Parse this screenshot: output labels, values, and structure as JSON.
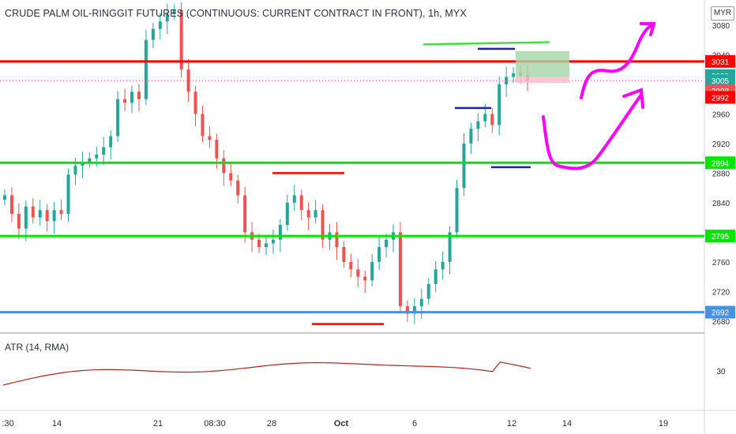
{
  "header": {
    "title": "CRUDE PALM OIL-RINGGIT FUTURES (CONTINUOUS: CURRENT CONTRACT IN FRONT), 1h, MYX",
    "currency": "MYR"
  },
  "atr": {
    "label": "ATR (14, RMA)",
    "tick": "30"
  },
  "price_ticks": [
    "3080",
    "3040",
    "3000",
    "2960",
    "2920",
    "2880",
    "2840",
    "2800",
    "2760",
    "2720",
    "2680"
  ],
  "time_labels": [
    ":30",
    "14",
    "21",
    "08:30",
    "28",
    "Oct",
    "6",
    "12",
    "14",
    "19"
  ],
  "levels": [
    {
      "label": "3031",
      "color": "#ff0000"
    },
    {
      "label": "3030",
      "color": "#26a69a"
    },
    {
      "label": "3005",
      "color": "#26a69a"
    },
    {
      "label": "2998",
      "color": "#ef5350"
    },
    {
      "label": "2992",
      "color": "#ff0000"
    },
    {
      "label": "2894",
      "color": "#00e600"
    },
    {
      "label": "2795",
      "color": "#00e600"
    },
    {
      "label": "2692",
      "color": "#4a90e2"
    }
  ],
  "colors": {
    "up": "#26a69a",
    "down": "#ef5350",
    "magenta": "#ff00ff",
    "atr_line": "#b22222"
  },
  "chart_data": {
    "type": "candlestick",
    "title": "CRUDE PALM OIL-RINGGIT FUTURES (CONTINUOUS: CURRENT CONTRACT IN FRONT), 1h, MYX",
    "ylim": [
      2666,
      3114
    ],
    "horizontal_levels": [
      3031,
      2894,
      2795,
      2692
    ],
    "close_series": [
      2850,
      2825,
      2805,
      2835,
      2820,
      2830,
      2815,
      2830,
      2825,
      2878,
      2890,
      2895,
      2900,
      2905,
      2915,
      2930,
      2980,
      2975,
      2990,
      2980,
      3060,
      3075,
      3085,
      3095,
      3100,
      3020,
      2990,
      2960,
      2930,
      2925,
      2900,
      2880,
      2870,
      2850,
      2800,
      2790,
      2780,
      2785,
      2790,
      2810,
      2840,
      2850,
      2830,
      2820,
      2830,
      2790,
      2800,
      2780,
      2760,
      2750,
      2740,
      2735,
      2760,
      2780,
      2790,
      2800,
      2700,
      2690,
      2700,
      2710,
      2730,
      2750,
      2760,
      2800,
      2860,
      2920,
      2940,
      2950,
      2960,
      2945,
      3000,
      3010,
      3015,
      3012,
      3005
    ],
    "atr_ylim": [
      20,
      40
    ]
  }
}
